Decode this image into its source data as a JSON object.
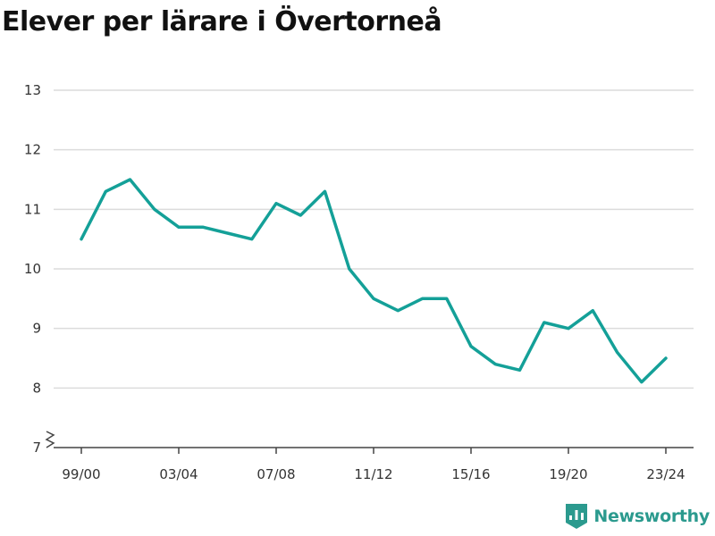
{
  "chart_data": {
    "type": "line",
    "title": "Elever per lärare i Övertorneå",
    "xlabel": "",
    "ylabel": "",
    "x": [
      "99/00",
      "00/01",
      "01/02",
      "02/03",
      "03/04",
      "04/05",
      "05/06",
      "06/07",
      "07/08",
      "08/09",
      "09/10",
      "10/11",
      "11/12",
      "12/13",
      "13/14",
      "14/15",
      "15/16",
      "16/17",
      "17/18",
      "18/19",
      "19/20",
      "20/21",
      "21/22",
      "22/23",
      "23/24"
    ],
    "x_tick_labels": [
      "99/00",
      "03/04",
      "07/08",
      "11/12",
      "15/16",
      "19/20",
      "23/24"
    ],
    "series": [
      {
        "values": [
          10.5,
          11.3,
          11.5,
          11.0,
          10.7,
          10.7,
          10.6,
          10.5,
          11.1,
          10.9,
          11.3,
          10.0,
          9.5,
          9.3,
          9.5,
          9.5,
          8.7,
          8.4,
          8.3,
          9.1,
          9.0,
          9.3,
          8.6,
          8.1,
          8.5
        ]
      }
    ],
    "yticks": [
      7,
      8,
      9,
      10,
      11,
      12,
      13
    ],
    "ylim": [
      7,
      13
    ],
    "y_axis_break": true,
    "grid": true,
    "legend": "none",
    "line_color": "#14a098",
    "grid_color": "#dcdcdc"
  },
  "brand": {
    "name": "Newsworthy",
    "icon": "newsworthy-logo-icon",
    "color": "#2b9a8e"
  }
}
